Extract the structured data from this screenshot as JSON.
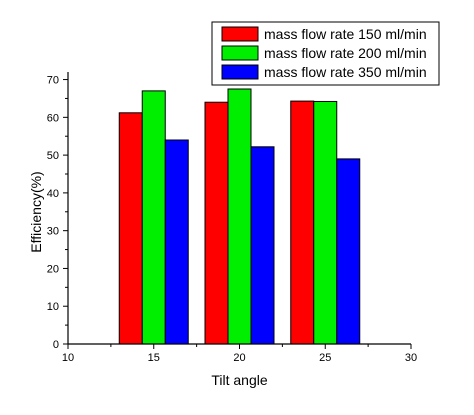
{
  "chart_data": {
    "type": "bar",
    "title": "",
    "xlabel": "Tilt angle",
    "ylabel": "Efficiency(%)",
    "xlim": [
      10,
      30
    ],
    "ylim": [
      0,
      72
    ],
    "x_ticks": [
      10,
      15,
      20,
      25,
      30
    ],
    "y_ticks": [
      0,
      10,
      20,
      30,
      40,
      50,
      60,
      70
    ],
    "categories": [
      15,
      20,
      25
    ],
    "series": [
      {
        "name": "mass flow rate 150 ml/min",
        "color": "#ff0000",
        "values": [
          61.2,
          64.0,
          64.3
        ]
      },
      {
        "name": "mass flow rate 200 ml/min",
        "color": "#00ee00",
        "values": [
          67.0,
          67.5,
          64.2
        ]
      },
      {
        "name": "mass flow rate 350 ml/min",
        "color": "#0000ff",
        "values": [
          54.0,
          52.2,
          49.0
        ]
      }
    ],
    "legend_position": "top-right",
    "grid": false
  }
}
